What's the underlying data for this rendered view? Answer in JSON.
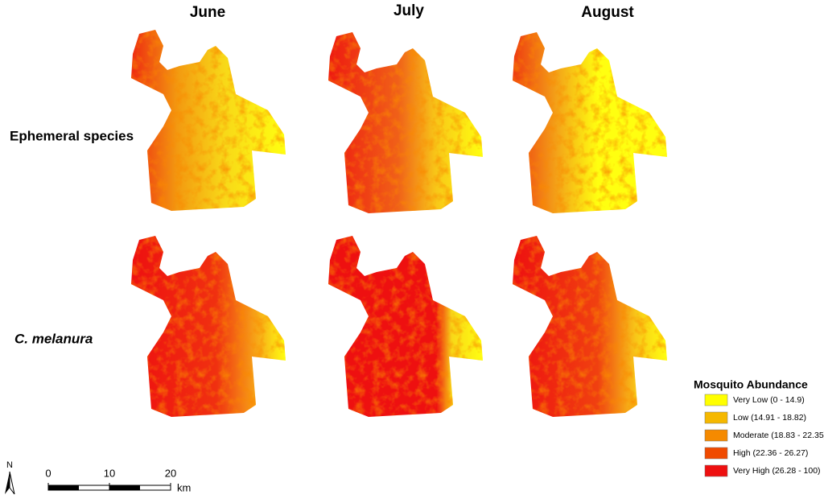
{
  "columns": [
    "June",
    "July",
    "August"
  ],
  "rows": [
    "Ephemeral species",
    "C. melanura"
  ],
  "legend": {
    "title": "Mosquito Abundance",
    "items": [
      {
        "label": "Very Low (0 - 14.9)",
        "color": "#ffff00"
      },
      {
        "label": "Low (14.91 - 18.82)",
        "color": "#f5b800"
      },
      {
        "label": "Moderate (18.83 - 22.35)",
        "color": "#f58a00"
      },
      {
        "label": "High (22.36 - 26.27)",
        "color": "#f04a00"
      },
      {
        "label": "Very High (26.28 - 100)",
        "color": "#ee1010"
      }
    ]
  },
  "north_arrow": "N",
  "scale_bar": {
    "ticks": [
      0,
      10,
      20
    ],
    "unit": "km"
  }
}
